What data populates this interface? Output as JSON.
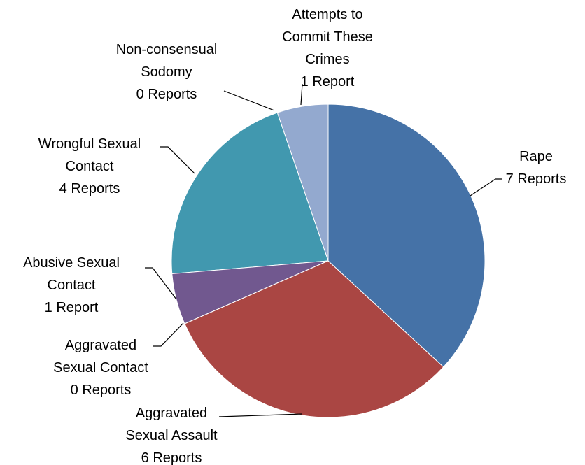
{
  "chart_data": {
    "type": "pie",
    "categories": [
      "Rape",
      "Aggravated\nSexual Assault",
      "Aggravated\nSexual Contact",
      "Abusive Sexual\nContact",
      "Wrongful Sexual\nContact",
      "Non-consensual\nSodomy",
      "Attempts to\nCommit These\nCrimes"
    ],
    "values": [
      7,
      6,
      0,
      1,
      4,
      0,
      1
    ],
    "value_labels": [
      "7 Reports",
      "6 Reports",
      "0 Reports",
      "1 Report",
      "4 Reports",
      "0 Reports",
      "1 Report"
    ],
    "colors": [
      "#4572a7",
      "#aa4643",
      "#89a54e",
      "#71588f",
      "#4198af",
      "#db843d",
      "#93a9cf"
    ]
  }
}
